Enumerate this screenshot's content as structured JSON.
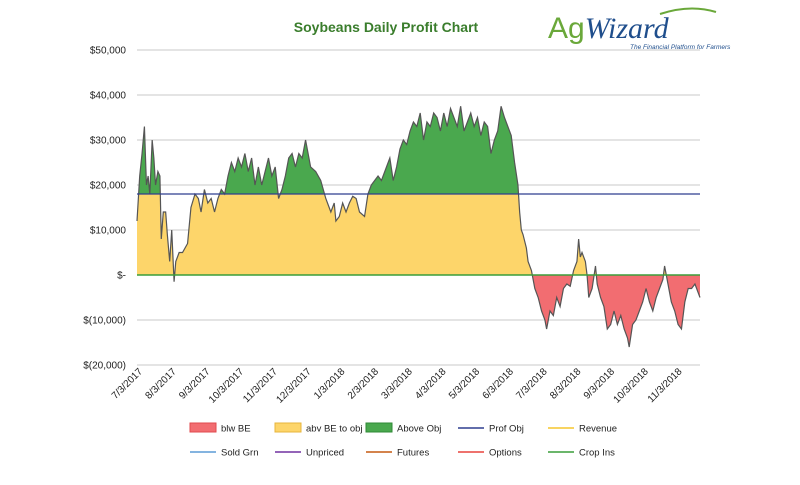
{
  "logo": {
    "part1": "Ag",
    "part2": "Wizard",
    "tagline": "The Financial Platform for Farmers"
  },
  "chart_data": {
    "type": "area",
    "title": "Soybeans Daily Profit Chart",
    "xlabel": "",
    "ylabel": "",
    "ylim": [
      -20000,
      50000
    ],
    "y_ticks": [
      50000,
      40000,
      30000,
      20000,
      10000,
      0,
      -10000,
      -20000
    ],
    "y_tick_labels": [
      "$50,000",
      "$40,000",
      "$30,000",
      "$20,000",
      "$10,000",
      "$-",
      "$(10,000)",
      "$(20,000)"
    ],
    "x_tick_labels": [
      "7/3/2017",
      "8/3/2017",
      "9/3/2017",
      "10/3/2017",
      "11/3/2017",
      "12/3/2017",
      "1/3/2018",
      "2/3/2018",
      "3/3/2018",
      "4/3/2018",
      "5/3/2018",
      "6/3/2018",
      "7/3/2018",
      "8/3/2018",
      "9/3/2018",
      "10/3/2018",
      "11/3/2018"
    ],
    "x_range_months": [
      0,
      16.7
    ],
    "grid": "horizontal",
    "legend_position": "bottom",
    "prof_obj": 18000,
    "profit_series": {
      "name": "Revenue",
      "points": [
        [
          0,
          12000
        ],
        [
          0.08,
          22000
        ],
        [
          0.15,
          27000
        ],
        [
          0.22,
          33000
        ],
        [
          0.28,
          20000
        ],
        [
          0.33,
          22000
        ],
        [
          0.38,
          18000
        ],
        [
          0.45,
          30000
        ],
        [
          0.5,
          26000
        ],
        [
          0.55,
          20000
        ],
        [
          0.62,
          23000
        ],
        [
          0.68,
          22000
        ],
        [
          0.72,
          8000
        ],
        [
          0.78,
          14000
        ],
        [
          0.85,
          14000
        ],
        [
          0.9,
          9000
        ],
        [
          0.97,
          3000
        ],
        [
          1.03,
          10000
        ],
        [
          1.1,
          -1500
        ],
        [
          1.15,
          3000
        ],
        [
          1.25,
          5000
        ],
        [
          1.35,
          5000
        ],
        [
          1.5,
          7000
        ],
        [
          1.6,
          15000
        ],
        [
          1.72,
          18000
        ],
        [
          1.82,
          17000
        ],
        [
          1.9,
          14000
        ],
        [
          2.0,
          19000
        ],
        [
          2.1,
          16000
        ],
        [
          2.2,
          17000
        ],
        [
          2.3,
          14000
        ],
        [
          2.4,
          17000
        ],
        [
          2.5,
          19000
        ],
        [
          2.6,
          18000
        ],
        [
          2.7,
          22000
        ],
        [
          2.8,
          25000
        ],
        [
          2.9,
          23000
        ],
        [
          3.0,
          26000
        ],
        [
          3.1,
          24000
        ],
        [
          3.2,
          27000
        ],
        [
          3.3,
          23000
        ],
        [
          3.4,
          26000
        ],
        [
          3.5,
          20000
        ],
        [
          3.6,
          24000
        ],
        [
          3.7,
          20000
        ],
        [
          3.8,
          23000
        ],
        [
          3.9,
          26000
        ],
        [
          4.0,
          22000
        ],
        [
          4.1,
          24000
        ],
        [
          4.2,
          17000
        ],
        [
          4.3,
          19000
        ],
        [
          4.4,
          22000
        ],
        [
          4.5,
          26000
        ],
        [
          4.6,
          27000
        ],
        [
          4.7,
          24000
        ],
        [
          4.8,
          27000
        ],
        [
          4.9,
          26000
        ],
        [
          5.0,
          30000
        ],
        [
          5.05,
          28000
        ],
        [
          5.15,
          24000
        ],
        [
          5.3,
          23000
        ],
        [
          5.45,
          21000
        ],
        [
          5.6,
          17000
        ],
        [
          5.75,
          14000
        ],
        [
          5.85,
          16000
        ],
        [
          5.9,
          12000
        ],
        [
          6.0,
          13000
        ],
        [
          6.1,
          16000
        ],
        [
          6.2,
          14000
        ],
        [
          6.3,
          16000
        ],
        [
          6.4,
          17500
        ],
        [
          6.5,
          17000
        ],
        [
          6.6,
          14000
        ],
        [
          6.75,
          13000
        ],
        [
          6.85,
          18000
        ],
        [
          6.95,
          20000
        ],
        [
          7.05,
          21000
        ],
        [
          7.15,
          22000
        ],
        [
          7.25,
          21000
        ],
        [
          7.4,
          24000
        ],
        [
          7.5,
          26000
        ],
        [
          7.6,
          21000
        ],
        [
          7.7,
          24000
        ],
        [
          7.8,
          28000
        ],
        [
          7.9,
          30000
        ],
        [
          8.0,
          29000
        ],
        [
          8.1,
          32000
        ],
        [
          8.2,
          34000
        ],
        [
          8.3,
          33000
        ],
        [
          8.4,
          36000
        ],
        [
          8.5,
          30000
        ],
        [
          8.6,
          34000
        ],
        [
          8.7,
          33000
        ],
        [
          8.8,
          36000
        ],
        [
          8.9,
          35000
        ],
        [
          9.0,
          32000
        ],
        [
          9.1,
          36000
        ],
        [
          9.2,
          33000
        ],
        [
          9.3,
          37000
        ],
        [
          9.4,
          35000
        ],
        [
          9.5,
          33000
        ],
        [
          9.6,
          37500
        ],
        [
          9.7,
          32000
        ],
        [
          9.8,
          34000
        ],
        [
          9.9,
          36000
        ],
        [
          10.0,
          33000
        ],
        [
          10.1,
          35000
        ],
        [
          10.2,
          31000
        ],
        [
          10.3,
          34000
        ],
        [
          10.4,
          33000
        ],
        [
          10.5,
          27000
        ],
        [
          10.6,
          30000
        ],
        [
          10.7,
          32000
        ],
        [
          10.8,
          37500
        ],
        [
          10.9,
          35000
        ],
        [
          11.0,
          33000
        ],
        [
          11.1,
          31000
        ],
        [
          11.2,
          25000
        ],
        [
          11.3,
          20000
        ],
        [
          11.35,
          14000
        ],
        [
          11.4,
          10000
        ],
        [
          11.45,
          9000
        ],
        [
          11.55,
          6000
        ],
        [
          11.6,
          3000
        ],
        [
          11.7,
          1000
        ],
        [
          11.8,
          -3000
        ],
        [
          11.9,
          -5000
        ],
        [
          12.0,
          -8000
        ],
        [
          12.1,
          -10000
        ],
        [
          12.15,
          -12000
        ],
        [
          12.25,
          -8000
        ],
        [
          12.35,
          -9000
        ],
        [
          12.45,
          -5000
        ],
        [
          12.55,
          -7000
        ],
        [
          12.65,
          -3000
        ],
        [
          12.75,
          -2000
        ],
        [
          12.85,
          -2500
        ],
        [
          12.95,
          1000
        ],
        [
          13.05,
          3000
        ],
        [
          13.1,
          8000
        ],
        [
          13.15,
          4000
        ],
        [
          13.2,
          5000
        ],
        [
          13.3,
          3000
        ],
        [
          13.35,
          0
        ],
        [
          13.4,
          -5000
        ],
        [
          13.5,
          -3000
        ],
        [
          13.6,
          2000
        ],
        [
          13.65,
          -2000
        ],
        [
          13.75,
          -5000
        ],
        [
          13.85,
          -7000
        ],
        [
          13.95,
          -12000
        ],
        [
          14.05,
          -11000
        ],
        [
          14.15,
          -8000
        ],
        [
          14.25,
          -11000
        ],
        [
          14.35,
          -9000
        ],
        [
          14.45,
          -12000
        ],
        [
          14.55,
          -14000
        ],
        [
          14.6,
          -16000
        ],
        [
          14.7,
          -11000
        ],
        [
          14.8,
          -10000
        ],
        [
          14.9,
          -8000
        ],
        [
          15.0,
          -6000
        ],
        [
          15.1,
          -3000
        ],
        [
          15.2,
          -6000
        ],
        [
          15.3,
          -8000
        ],
        [
          15.4,
          -5000
        ],
        [
          15.5,
          -3000
        ],
        [
          15.6,
          -1000
        ],
        [
          15.65,
          2000
        ],
        [
          15.75,
          -2000
        ],
        [
          15.85,
          -6000
        ],
        [
          15.95,
          -8000
        ],
        [
          16.05,
          -11000
        ],
        [
          16.15,
          -12000
        ],
        [
          16.25,
          -6000
        ],
        [
          16.35,
          -3000
        ],
        [
          16.45,
          -3000
        ],
        [
          16.55,
          -2000
        ],
        [
          16.65,
          -4000
        ],
        [
          16.7,
          -5000
        ]
      ]
    },
    "legend": [
      {
        "label": "blw BE",
        "kind": "box",
        "color": "#f26d71",
        "edge": "#e04a4e"
      },
      {
        "label": "abv BE to obj",
        "kind": "box",
        "color": "#fdd56a",
        "edge": "#e7b53c"
      },
      {
        "label": "Above Obj",
        "kind": "box",
        "color": "#4aa84e",
        "edge": "#2f8a36"
      },
      {
        "label": "Prof Obj",
        "kind": "line",
        "color": "#2f3f8f"
      },
      {
        "label": "Revenue",
        "kind": "line",
        "color": "#f5c62d"
      },
      {
        "label": "Sold Grn",
        "kind": "line",
        "color": "#5b9bd5"
      },
      {
        "label": "Unpriced",
        "kind": "line",
        "color": "#7030a0"
      },
      {
        "label": "Futures",
        "kind": "line",
        "color": "#c55a11"
      },
      {
        "label": "Options",
        "kind": "line",
        "color": "#e8433d"
      },
      {
        "label": "Crop Ins",
        "kind": "line",
        "color": "#3a9d3a"
      }
    ],
    "colors": {
      "below_be": "#f26d71",
      "abv_be_to_obj": "#fdd56a",
      "above_obj": "#4aa84e",
      "prof_obj_line": "#2f3f8f",
      "zero_line": "#3a9d3a",
      "profit_line": "#555555",
      "grid": "#c8c8c8"
    }
  }
}
